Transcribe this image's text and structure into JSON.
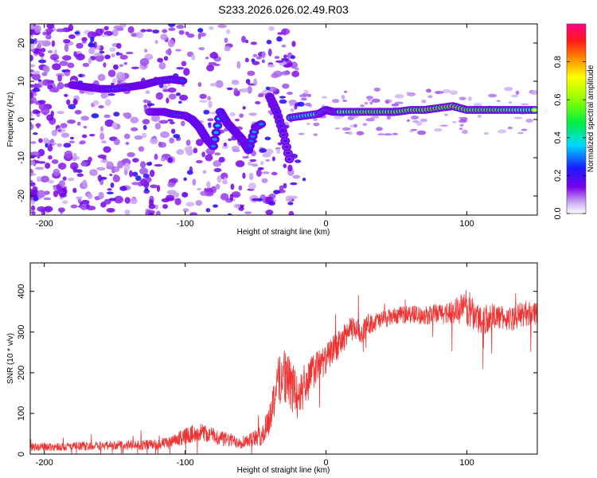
{
  "chart_data": [
    {
      "type": "heatmap",
      "title": "S233.2026.026.02.49.R03",
      "xlabel": "Height of straight line (km)",
      "ylabel": "Frequency (Hz)",
      "xlim": [
        -210,
        150
      ],
      "ylim": [
        -25,
        25
      ],
      "xticks": [
        -200,
        -100,
        0,
        100
      ],
      "xticklabels": [
        "-200",
        "-100",
        "0",
        "100"
      ],
      "yticks": [
        -20,
        -10,
        0,
        10,
        20
      ],
      "yticklabels": [
        "-20",
        "-10",
        "0",
        "10",
        "20"
      ],
      "colorbar": {
        "label": "Normalized spectral amplitude",
        "range": [
          0,
          1
        ],
        "ticks": [
          0.0,
          0.2,
          0.4,
          0.6,
          0.8
        ],
        "ticklabels": [
          "0.0",
          "0.2",
          "0.4",
          "0.6",
          "0.8"
        ],
        "colormap": "rainbow (white → violet → blue → cyan → green → yellow → orange → red → magenta)"
      },
      "ridges": [
        {
          "name": "main-branch-right",
          "x": [
            -25,
            -15,
            -5,
            0,
            5,
            10,
            20,
            30,
            40,
            50,
            60,
            70,
            80,
            90,
            100,
            110,
            120,
            130,
            140,
            150
          ],
          "y": [
            0.5,
            1,
            1.5,
            2.5,
            2,
            2,
            2,
            2,
            2,
            2,
            2.5,
            2.5,
            3,
            3.5,
            2.5,
            2.5,
            2.5,
            2.5,
            2.5,
            2.5
          ],
          "amp": [
            0.5,
            0.55,
            0.6,
            0.6,
            0.7,
            0.7,
            0.75,
            0.8,
            0.8,
            0.8,
            0.82,
            0.85,
            0.85,
            0.85,
            0.8,
            0.82,
            0.8,
            0.75,
            0.7,
            0.7
          ]
        },
        {
          "name": "upper-branch-left",
          "x": [
            -180,
            -170,
            -160,
            -150,
            -140,
            -130,
            -120,
            -110,
            -100
          ],
          "y": [
            9,
            8.5,
            8,
            8,
            8.5,
            9,
            10,
            10.5,
            10
          ],
          "amp": [
            0.22,
            0.24,
            0.25,
            0.35,
            0.28,
            0.24,
            0.28,
            0.32,
            0.25
          ]
        },
        {
          "name": "descending-branch",
          "x": [
            -125,
            -115,
            -110,
            -100,
            -95,
            -90,
            -85,
            -80,
            -75,
            -70,
            -65,
            -60,
            -55,
            -50,
            -45
          ],
          "y": [
            2,
            2,
            1.5,
            1,
            0,
            -2,
            -5,
            -7,
            2,
            -1,
            -3,
            -5,
            -8,
            -2,
            -1
          ],
          "amp": [
            0.2,
            0.25,
            0.3,
            0.35,
            0.38,
            0.3,
            0.3,
            0.3,
            0.4,
            0.3,
            0.35,
            0.28,
            0.25,
            0.35,
            0.3
          ]
        },
        {
          "name": "steep-branch",
          "x": [
            -40,
            -35,
            -30,
            -25
          ],
          "y": [
            6,
            2,
            -4,
            -12
          ],
          "amp": [
            0.22,
            0.22,
            0.2,
            0.18
          ]
        }
      ]
    },
    {
      "type": "line",
      "xlabel": "Height of straight line (km)",
      "ylabel": "SNR (10 * v/v)",
      "xlim": [
        -210,
        150
      ],
      "ylim": [
        0,
        470
      ],
      "xticks": [
        -200,
        -100,
        0,
        100
      ],
      "xticklabels": [
        "-200",
        "-100",
        "0",
        "100"
      ],
      "yticks": [
        0,
        100,
        200,
        300,
        400
      ],
      "yticklabels": [
        "0",
        "100",
        "200",
        "300",
        "400"
      ],
      "series": [
        {
          "name": "SNR",
          "color": "#ee3333",
          "x": [
            -210,
            -200,
            -190,
            -180,
            -170,
            -160,
            -150,
            -140,
            -130,
            -120,
            -110,
            -100,
            -90,
            -80,
            -70,
            -60,
            -50,
            -45,
            -40,
            -35,
            -30,
            -25,
            -20,
            -15,
            -10,
            -5,
            0,
            5,
            10,
            15,
            20,
            25,
            30,
            40,
            50,
            60,
            70,
            80,
            90,
            100,
            110,
            120,
            130,
            140,
            150
          ],
          "y": [
            18,
            18,
            18,
            19,
            20,
            21,
            22,
            22,
            22,
            24,
            28,
            45,
            55,
            45,
            35,
            30,
            40,
            45,
            90,
            170,
            200,
            170,
            140,
            160,
            200,
            220,
            230,
            260,
            270,
            300,
            310,
            300,
            320,
            330,
            340,
            345,
            340,
            345,
            350,
            360,
            330,
            340,
            330,
            345,
            350
          ],
          "jitter": [
            10,
            10,
            10,
            10,
            11,
            11,
            12,
            12,
            12,
            13,
            15,
            20,
            22,
            20,
            18,
            16,
            20,
            25,
            40,
            60,
            70,
            65,
            55,
            50,
            45,
            40,
            35,
            35,
            35,
            30,
            30,
            28,
            25,
            22,
            20,
            22,
            22,
            25,
            30,
            45,
            40,
            30,
            30,
            32,
            30
          ]
        }
      ]
    }
  ]
}
